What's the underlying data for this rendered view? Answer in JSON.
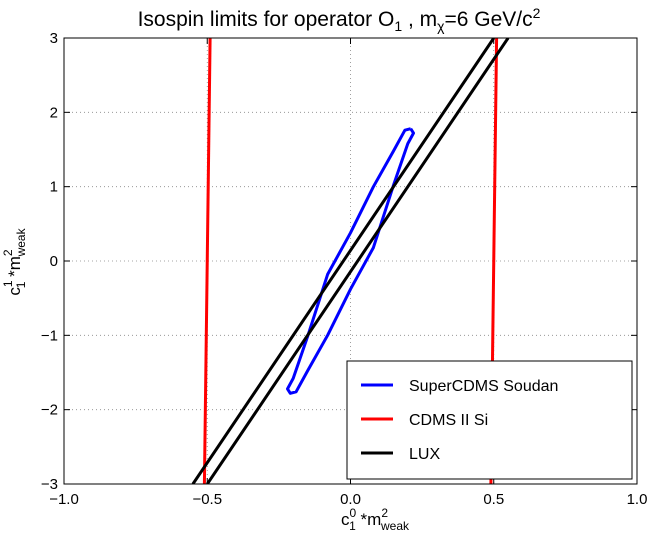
{
  "chart_data": {
    "type": "line",
    "title": {
      "main": "Isospin limits for operator O",
      "main_sub": "1",
      "mid": " , m",
      "mid_sub": "χ",
      "tail": "=6 GeV/c",
      "tail_sup": "2"
    },
    "xlabel": {
      "base": "c",
      "sup": "0",
      "sub": "1",
      "mid": " *m",
      "sup2": "2",
      "sub2": "weak"
    },
    "ylabel": {
      "base": "c",
      "sup": "1",
      "sub": "1",
      "mid": " *m",
      "sup2": "2",
      "sub2": "weak"
    },
    "xlim": [
      -1.0,
      1.0
    ],
    "ylim": [
      -3,
      3
    ],
    "xticks": [
      -1.0,
      -0.5,
      0.0,
      0.5,
      1.0
    ],
    "xtick_labels": [
      "−1.0",
      "−0.5",
      "0.0",
      "0.5",
      "1.0"
    ],
    "yticks": [
      -3,
      -2,
      -1,
      0,
      1,
      2,
      3
    ],
    "ytick_labels": [
      "−3",
      "−2",
      "−1",
      "0",
      "1",
      "2",
      "3"
    ],
    "grid": true,
    "legend_position": "lower-right",
    "series": [
      {
        "name": "SuperCDMS Soudan",
        "color": "#0000ff",
        "segments": [
          [
            [
              0.21,
              1.78
            ],
            [
              0.19,
              1.76
            ],
            [
              0.15,
              1.48
            ],
            [
              0.08,
              1.0
            ],
            [
              0.0,
              0.38
            ],
            [
              -0.08,
              -0.18
            ],
            [
              -0.15,
              -1.02
            ],
            [
              -0.2,
              -1.58
            ],
            [
              -0.22,
              -1.72
            ],
            [
              -0.21,
              -1.78
            ],
            [
              -0.19,
              -1.76
            ],
            [
              -0.15,
              -1.48
            ],
            [
              -0.08,
              -1.0
            ],
            [
              0.0,
              -0.38
            ],
            [
              0.08,
              0.18
            ],
            [
              0.15,
              1.02
            ],
            [
              0.2,
              1.58
            ],
            [
              0.22,
              1.72
            ],
            [
              0.21,
              1.78
            ]
          ]
        ]
      },
      {
        "name": "CDMS II Si",
        "color": "#ff0000",
        "segments": [
          [
            [
              -0.51,
              -3.0
            ],
            [
              -0.49,
              3.0
            ]
          ],
          [
            [
              0.49,
              -3.0
            ],
            [
              0.51,
              3.0
            ]
          ]
        ]
      },
      {
        "name": "LUX",
        "color": "#000000",
        "segments": [
          [
            [
              -0.55,
              -3.0
            ],
            [
              0.5,
              3.0
            ]
          ],
          [
            [
              -0.5,
              -3.0
            ],
            [
              0.55,
              3.0
            ]
          ]
        ]
      }
    ]
  }
}
